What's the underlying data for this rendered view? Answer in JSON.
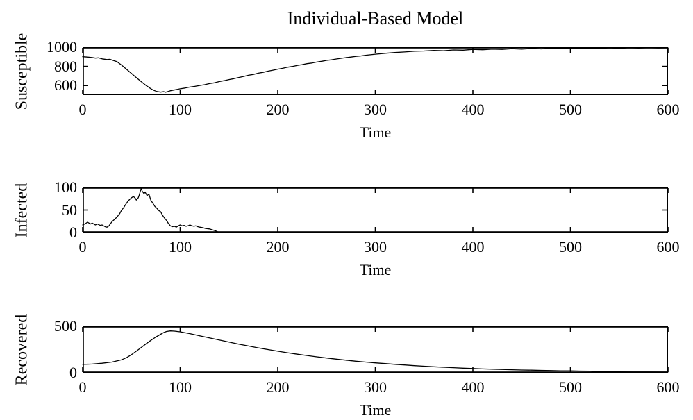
{
  "figure": {
    "background": "#ffffff",
    "axis_color": "#000000",
    "text_color": "#000000"
  },
  "chart_data": [
    {
      "type": "line",
      "title": "Individual-Based Model",
      "ylabel": "Susceptible",
      "xlabel": "Time",
      "xlim": [
        0,
        600
      ],
      "ylim": [
        500,
        1000
      ],
      "xticks": [
        0,
        100,
        200,
        300,
        400,
        500,
        600
      ],
      "yticks": [
        600,
        800,
        1000
      ],
      "grid": false,
      "legend": null,
      "line_color": "#000000",
      "series": [
        {
          "name": "Susceptible",
          "x": [
            0,
            5,
            10,
            13,
            16,
            20,
            25,
            28,
            30,
            35,
            40,
            45,
            50,
            55,
            60,
            65,
            70,
            73,
            76,
            80,
            83,
            85,
            88,
            90,
            95,
            100,
            105,
            110,
            115,
            120,
            125,
            130,
            135,
            140,
            145,
            150,
            155,
            160,
            165,
            170,
            175,
            180,
            185,
            190,
            195,
            200,
            205,
            210,
            215,
            220,
            225,
            230,
            235,
            240,
            245,
            250,
            255,
            260,
            265,
            270,
            275,
            280,
            285,
            290,
            295,
            300,
            310,
            320,
            330,
            340,
            350,
            360,
            370,
            380,
            390,
            400,
            410,
            420,
            430,
            440,
            450,
            460,
            470,
            480,
            490,
            500,
            510,
            520,
            530,
            540,
            550,
            560,
            570,
            580,
            590,
            600
          ],
          "y": [
            901,
            897,
            892,
            886,
            889,
            878,
            871,
            874,
            866,
            850,
            812,
            770,
            727,
            683,
            641,
            601,
            566,
            549,
            538,
            531,
            536,
            530,
            539,
            546,
            556,
            566,
            574,
            584,
            591,
            601,
            609,
            620,
            628,
            641,
            651,
            662,
            672,
            684,
            695,
            707,
            716,
            729,
            738,
            750,
            760,
            771,
            780,
            791,
            799,
            810,
            818,
            828,
            835,
            845,
            853,
            862,
            868,
            877,
            884,
            891,
            897,
            904,
            909,
            916,
            921,
            927,
            936,
            944,
            950,
            957,
            960,
            966,
            963,
            971,
            969,
            977,
            973,
            980,
            977,
            984,
            980,
            986,
            982,
            988,
            984,
            989,
            986,
            991,
            987,
            992,
            988,
            993,
            990,
            994,
            991,
            993
          ]
        }
      ]
    },
    {
      "type": "line",
      "title": "",
      "ylabel": "Infected",
      "xlabel": "Time",
      "xlim": [
        0,
        600
      ],
      "ylim": [
        0,
        100
      ],
      "xticks": [
        0,
        100,
        200,
        300,
        400,
        500,
        600
      ],
      "yticks": [
        0,
        50,
        100
      ],
      "grid": false,
      "legend": null,
      "line_color": "#000000",
      "series": [
        {
          "name": "Infected",
          "x": [
            0,
            3,
            5,
            8,
            10,
            13,
            15,
            18,
            20,
            23,
            25,
            27,
            30,
            33,
            35,
            38,
            40,
            42,
            44,
            46,
            48,
            50,
            52,
            54,
            55,
            57,
            58,
            60,
            61,
            63,
            64,
            66,
            68,
            70,
            72,
            74,
            76,
            78,
            80,
            82,
            84,
            86,
            88,
            90,
            92,
            94,
            96,
            98,
            100,
            102,
            104,
            106,
            108,
            110,
            112,
            114,
            116,
            118,
            120,
            123,
            126,
            130,
            133,
            136,
            138,
            140
          ],
          "y": [
            17,
            20,
            23,
            19,
            21,
            17,
            19,
            16,
            17,
            13,
            12,
            15,
            24,
            30,
            34,
            42,
            50,
            55,
            62,
            68,
            73,
            77,
            80,
            76,
            72,
            77,
            83,
            98,
            92,
            86,
            90,
            82,
            85,
            71,
            65,
            58,
            54,
            49,
            46,
            38,
            32,
            27,
            20,
            15,
            13,
            14,
            12,
            15,
            17,
            15,
            16,
            14,
            15,
            17,
            15,
            14,
            15,
            13,
            12,
            11,
            9,
            8,
            6,
            4,
            2,
            0
          ]
        }
      ]
    },
    {
      "type": "line",
      "title": "",
      "ylabel": "Recovered",
      "xlabel": "Time",
      "xlim": [
        0,
        600
      ],
      "ylim": [
        0,
        500
      ],
      "xticks": [
        0,
        100,
        200,
        300,
        400,
        500,
        600
      ],
      "yticks": [
        0,
        500
      ],
      "grid": false,
      "legend": null,
      "line_color": "#000000",
      "series": [
        {
          "name": "Recovered",
          "x": [
            0,
            10,
            20,
            30,
            40,
            45,
            50,
            55,
            60,
            65,
            70,
            75,
            80,
            83,
            86,
            90,
            94,
            100,
            110,
            120,
            130,
            140,
            150,
            160,
            170,
            180,
            190,
            200,
            210,
            220,
            230,
            240,
            250,
            260,
            270,
            280,
            290,
            300,
            310,
            320,
            330,
            340,
            350,
            360,
            370,
            380,
            390,
            400,
            410,
            420,
            430,
            440,
            450,
            460,
            470,
            480,
            490,
            500,
            510,
            520,
            527,
            535,
            550,
            565,
            580,
            600
          ],
          "y": [
            90,
            94,
            103,
            116,
            140,
            163,
            195,
            232,
            272,
            311,
            349,
            384,
            414,
            432,
            444,
            450,
            448,
            440,
            421,
            398,
            375,
            352,
            330,
            308,
            288,
            268,
            250,
            232,
            216,
            200,
            186,
            172,
            159,
            147,
            136,
            125,
            116,
            107,
            99,
            91,
            84,
            77,
            71,
            65,
            60,
            55,
            50,
            46,
            42,
            39,
            36,
            33,
            30,
            28,
            26,
            24,
            22,
            21,
            19,
            18,
            12,
            10,
            10,
            9,
            9,
            8
          ]
        }
      ]
    }
  ]
}
